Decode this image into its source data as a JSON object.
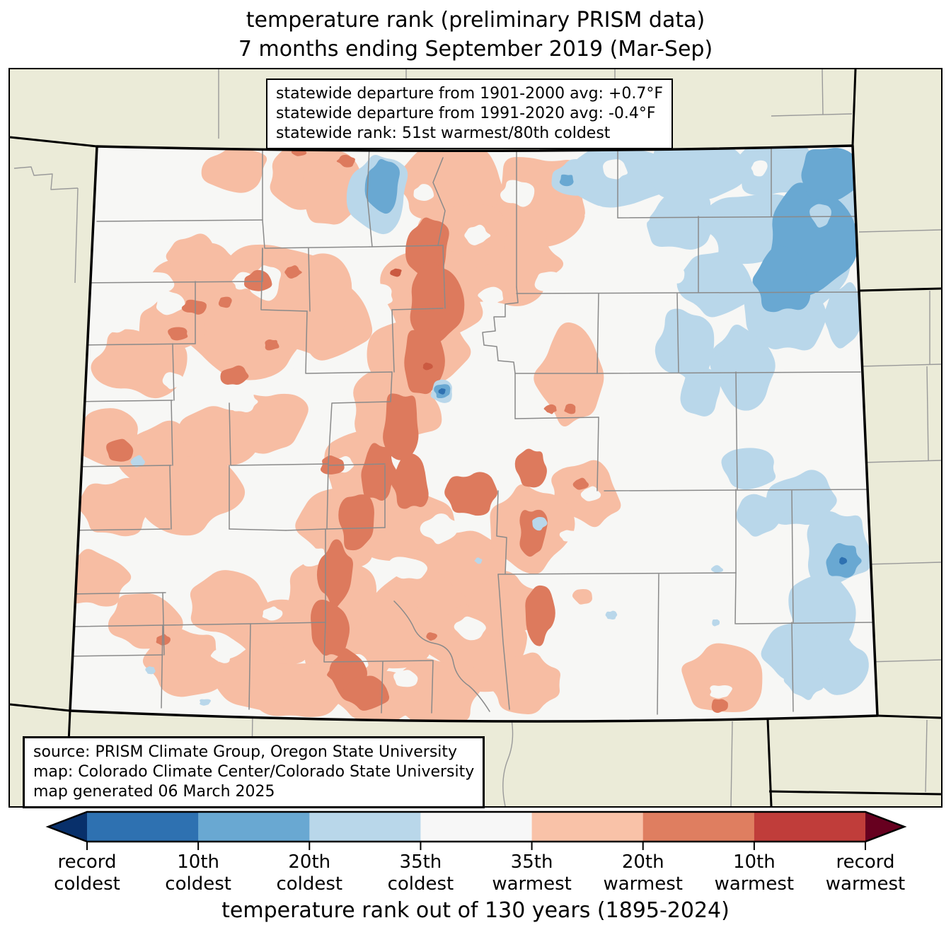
{
  "title": {
    "line1": "temperature rank (preliminary PRISM data)",
    "line2": "7 months ending September 2019 (Mar-Sep)"
  },
  "stats_box": {
    "line1": "statewide departure from 1901-2000 avg: +0.7°F",
    "line2": "statewide departure from 1991-2020 avg: -0.4°F",
    "line3": "statewide rank: 51st warmest/80th coldest"
  },
  "source_box": {
    "line1": "source: PRISM Climate Group, Oregon State University",
    "line2": "map: Colorado Climate Center/Colorado State University",
    "line3": "map generated 06 March 2025"
  },
  "legend": {
    "title": "temperature rank out of 130 years (1895-2024)",
    "left_arrow_color": "#08306B",
    "right_arrow_color": "#67001F",
    "segments": [
      {
        "color": "#2E71B1"
      },
      {
        "color": "#69A8D2"
      },
      {
        "color": "#B9D7EA"
      },
      {
        "color": "#F7F7F7"
      },
      {
        "color": "#F9C2A8"
      },
      {
        "color": "#DF7E60"
      },
      {
        "color": "#C03D3A"
      }
    ],
    "tick_labels": [
      {
        "line1": "record",
        "line2": "coldest"
      },
      {
        "line1": "10th",
        "line2": "coldest"
      },
      {
        "line1": "20th",
        "line2": "coldest"
      },
      {
        "line1": "35th",
        "line2": "coldest"
      },
      {
        "line1": "35th",
        "line2": "warmest"
      },
      {
        "line1": "20th",
        "line2": "warmest"
      },
      {
        "line1": "10th",
        "line2": "warmest"
      },
      {
        "line1": "record",
        "line2": "warmest"
      }
    ]
  },
  "map": {
    "region": "Colorado",
    "palette": {
      "outside_land": "#EBEBD8",
      "state_fill": "#F7F7F5",
      "county_line": "#8A8A8A",
      "neighbor_county_line": "#9A9A9A",
      "warm_light": "#F7BDA3",
      "warm_mid": "#DD7A5D",
      "warm_dark": "#CB5A41",
      "cool_light": "#B9D7EA",
      "cool_mid": "#69A8D2",
      "cool_dark": "#2E71B1"
    }
  }
}
